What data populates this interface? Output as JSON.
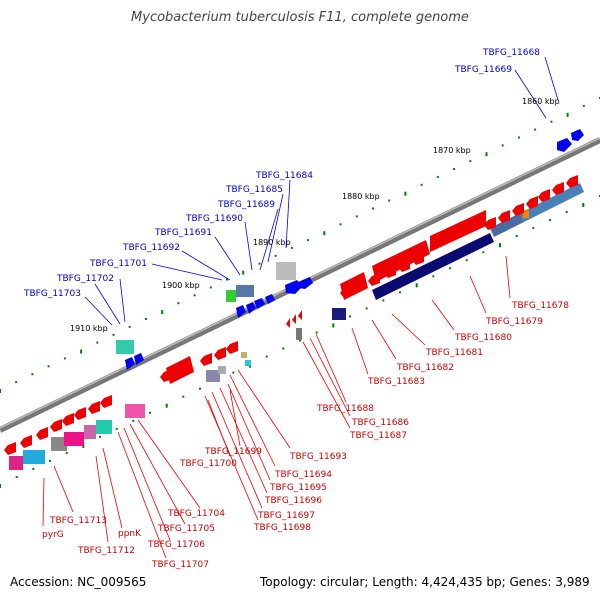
{
  "title": "Mycobacterium tuberculosis F11, complete genome",
  "footer": {
    "accession": "Accession: NC_009565",
    "topology": "Topology: circular; Length: 4,424,435 bp; Genes: 3,989"
  },
  "scale_labels": [
    "1860 kbp",
    "1870 kbp",
    "1880 kbp",
    "1890 kbp",
    "1900 kbp",
    "1910 kbp"
  ],
  "blue_labels": [
    "TBFG_11668",
    "TBFG_11669",
    "TBFG_11684",
    "TBFG_11685",
    "TBFG_11689",
    "TBFG_11690",
    "TBFG_11691",
    "TBFG_11692",
    "TBFG_11701",
    "TBFG_11702",
    "TBFG_11703"
  ],
  "red_labels": [
    "TBFG_11678",
    "TBFG_11679",
    "TBFG_11680",
    "TBFG_11681",
    "TBFG_11682",
    "TBFG_11683",
    "TBFG_11688",
    "TBFG_11686",
    "TBFG_11687",
    "TBFG_11693",
    "TBFG_11694",
    "TBFG_11695",
    "TBFG_11696",
    "TBFG_11697",
    "TBFG_11698",
    "TBFG_11699",
    "TBFG_11700",
    "TBFG_11704",
    "TBFG_11705",
    "TBFG_11706",
    "TBFG_11707",
    "TBFG_11713",
    "TBFG_11712",
    "pyrG",
    "ppnK"
  ],
  "colors": {
    "forward": "#0000ee",
    "reverse": "#ee0000",
    "backbone": "#888888",
    "tick": "#008000"
  }
}
